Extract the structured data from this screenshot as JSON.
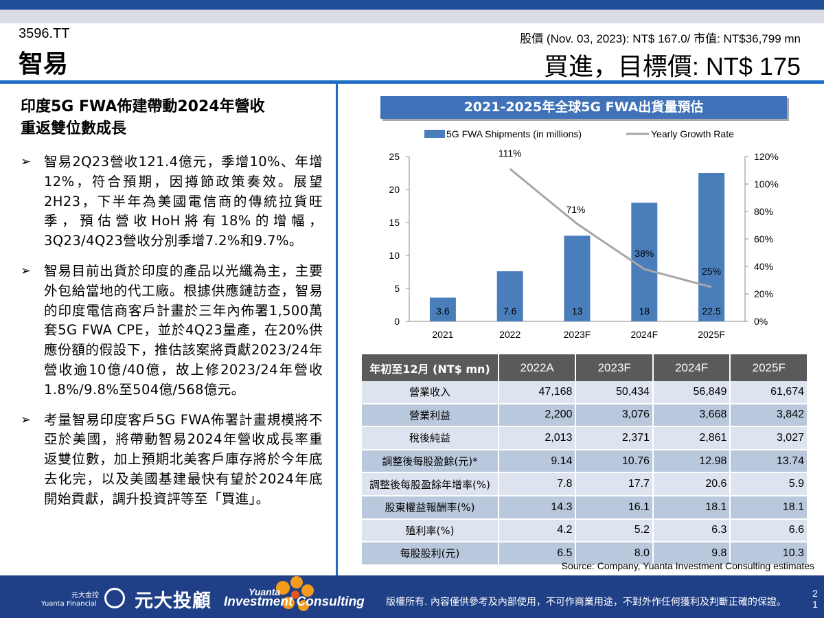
{
  "header": {
    "ticker": "3596.TT",
    "company": "智易",
    "price_line": "股價 (Nov. 03, 2023): NT$ 167.0/ 市值: NT$36,799 mn",
    "rating": "買進，目標價: NT$ 175"
  },
  "left": {
    "headline_line1": "印度5G FWA佈建帶動2024年營收",
    "headline_line2": "重返雙位數成長",
    "bullets": [
      "智易2Q23營收121.4億元，季增10%、年增12%，符合預期，因撙節政策奏效。展望2H23，下半年為美國電信商的傳統拉貨旺季，預估營收HoH將有18%的增幅，3Q23/4Q23營收分別季增7.2%和9.7%。",
      "智易目前出貨於印度的產品以光纖為主，主要外包給當地的代工廠。根據供應鏈訪查，智易的印度電信商客戶計畫於三年內佈署1,500萬套5G FWA CPE，並於4Q23量產，在20%供應份額的假設下，推估該案將貢獻2023/24年營收逾10億/40億，故上修2023/24年營收1.8%/9.8%至504億/568億元。",
      "考量智易印度客戶5G FWA佈署計畫規模將不亞於美國，將帶動智易2024年營收成長率重返雙位數，加上預期北美客戶庫存將於今年底去化完，以及美國基建最快有望於2024年底開始貢獻，調升投資評等至「買進」。"
    ],
    "bullet_glyph": "➢"
  },
  "chart_data": {
    "type": "bar",
    "title": "2021-2025年全球5G FWA出貨量預估",
    "categories": [
      "2021",
      "2022",
      "2023F",
      "2024F",
      "2025F"
    ],
    "series": [
      {
        "name": "5G FWA Shipments (in millions)",
        "type": "bar",
        "axis": "left",
        "values": [
          3.6,
          7.6,
          13,
          18,
          22.5
        ],
        "labels": [
          "3.6",
          "7.6",
          "13",
          "18",
          "22.5"
        ],
        "color": "#4a7ebb"
      },
      {
        "name": "Yearly Growth Rate",
        "type": "line",
        "axis": "right",
        "x": [
          "2022",
          "2023F",
          "2024F",
          "2025F"
        ],
        "values": [
          111,
          71,
          38,
          25
        ],
        "labels": [
          "111%",
          "71%",
          "38%",
          "25%"
        ],
        "color": "#a6a6a6"
      }
    ],
    "ylim_left": [
      0,
      25
    ],
    "yticks_left": [
      "0",
      "5",
      "10",
      "15",
      "20",
      "25"
    ],
    "ylim_right": [
      0,
      120
    ],
    "yticks_right": [
      "0%",
      "20%",
      "40%",
      "60%",
      "80%",
      "100%",
      "120%"
    ],
    "legend": "top",
    "grid": false
  },
  "table": {
    "header": [
      "年初至12月 (NT$ mn)",
      "2022A",
      "2023F",
      "2024F",
      "2025F"
    ],
    "rows": [
      {
        "label": "營業收入",
        "values": [
          "47,168",
          "50,434",
          "56,849",
          "61,674"
        ]
      },
      {
        "label": "營業利益",
        "values": [
          "2,200",
          "3,076",
          "3,668",
          "3,842"
        ]
      },
      {
        "label": "稅後純益",
        "values": [
          "2,013",
          "2,371",
          "2,861",
          "3,027"
        ]
      },
      {
        "label": "調整後每股盈餘(元)*",
        "values": [
          "9.14",
          "10.76",
          "12.98",
          "13.74"
        ]
      },
      {
        "label": "調整後每股盈餘年增率(%)",
        "values": [
          "7.8",
          "17.7",
          "20.6",
          "5.9"
        ]
      },
      {
        "label": "股東權益報酬率(%)",
        "values": [
          "14.3",
          "16.1",
          "18.1",
          "18.1"
        ]
      },
      {
        "label": "殖利率(%)",
        "values": [
          "4.2",
          "5.2",
          "6.3",
          "6.6"
        ]
      },
      {
        "label": "每股股利(元)",
        "values": [
          "6.5",
          "8.0",
          "9.8",
          "10.3"
        ]
      }
    ]
  },
  "source": "Source: Company, Yuanta Investment Consulting estimates",
  "footer": {
    "logo_small_cn": "元大金控",
    "logo_small_en": "Yuanta Financial",
    "logo_cn": "元大投顧",
    "brand_top": "Yuanta",
    "brand_bottom": "Investment Consulting",
    "disclaimer": "版權所有. 內容僅供參考及內部使用，不可作商業用途，不對外作任何獲利及判斷正確的保證。",
    "page_top": "2",
    "page_bottom": "1"
  },
  "colors": {
    "brand_blue": "#1f3f86",
    "accent_blue": "#1f6ec3",
    "bar_blue": "#4a7ebb",
    "line_gray": "#a6a6a6",
    "table_header": "#5a5a5a",
    "row_light": "#dde4ef",
    "row_dark": "#bac8dd"
  }
}
